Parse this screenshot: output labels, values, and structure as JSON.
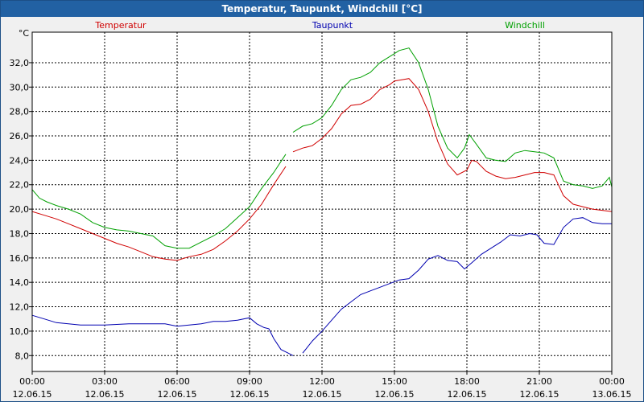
{
  "window": {
    "title": "Temperatur, Taupunkt, Windchill [°C]"
  },
  "chart_data": {
    "type": "line",
    "title": "Temperatur, Taupunkt, Windchill [°C]",
    "ylabel": "°C",
    "xlabel": "",
    "ylim": [
      6.7,
      34.5
    ],
    "xlim": [
      0,
      24
    ],
    "grid": true,
    "legend_position": "top",
    "y_ticks": [
      8,
      10,
      12,
      14,
      16,
      18,
      20,
      22,
      24,
      26,
      28,
      30,
      32
    ],
    "y_tick_labels": [
      "8,0",
      "10,0",
      "12,0",
      "14,0",
      "16,0",
      "18,0",
      "20,0",
      "22,0",
      "24,0",
      "26,0",
      "28,0",
      "30,0",
      "32,0"
    ],
    "x_ticks": [
      0,
      3,
      6,
      9,
      12,
      15,
      18,
      21,
      24
    ],
    "x_tick_labels": [
      {
        "time": "00:00",
        "date": "12.06.15"
      },
      {
        "time": "03:00",
        "date": "12.06.15"
      },
      {
        "time": "06:00",
        "date": "12.06.15"
      },
      {
        "time": "09:00",
        "date": "12.06.15"
      },
      {
        "time": "12:00",
        "date": "12.06.15"
      },
      {
        "time": "15:00",
        "date": "12.06.15"
      },
      {
        "time": "18:00",
        "date": "12.06.15"
      },
      {
        "time": "21:00",
        "date": "12.06.15"
      },
      {
        "time": "00:00",
        "date": "13.06.15"
      }
    ],
    "series": [
      {
        "name": "Temperatur",
        "color": "#d00000",
        "segments": [
          [
            [
              0,
              19.8
            ],
            [
              0.5,
              19.5
            ],
            [
              1,
              19.2
            ],
            [
              1.5,
              18.8
            ],
            [
              2,
              18.4
            ],
            [
              2.5,
              18.0
            ],
            [
              3,
              17.6
            ],
            [
              3.5,
              17.2
            ],
            [
              4,
              16.9
            ],
            [
              4.5,
              16.5
            ],
            [
              5,
              16.1
            ],
            [
              5.5,
              15.9
            ],
            [
              6,
              15.8
            ],
            [
              6.5,
              16.1
            ],
            [
              7,
              16.3
            ],
            [
              7.5,
              16.7
            ],
            [
              8,
              17.4
            ],
            [
              8.5,
              18.2
            ],
            [
              9,
              19.2
            ],
            [
              9.5,
              20.4
            ],
            [
              10,
              22.0
            ],
            [
              10.5,
              23.5
            ]
          ],
          [
            [
              10.8,
              24.7
            ],
            [
              11.2,
              25.0
            ],
            [
              11.6,
              25.2
            ],
            [
              12,
              25.8
            ],
            [
              12.4,
              26.6
            ],
            [
              12.8,
              27.8
            ],
            [
              13.2,
              28.5
            ],
            [
              13.6,
              28.6
            ],
            [
              14,
              29.0
            ],
            [
              14.4,
              29.8
            ],
            [
              14.8,
              30.2
            ],
            [
              15,
              30.5
            ],
            [
              15.3,
              30.6
            ],
            [
              15.6,
              30.7
            ],
            [
              16,
              29.8
            ],
            [
              16.4,
              28.0
            ],
            [
              16.8,
              25.5
            ],
            [
              17.2,
              23.7
            ],
            [
              17.6,
              22.8
            ],
            [
              18,
              23.2
            ],
            [
              18.2,
              24.0
            ],
            [
              18.4,
              23.9
            ],
            [
              18.8,
              23.1
            ],
            [
              19.2,
              22.7
            ],
            [
              19.6,
              22.5
            ],
            [
              20,
              22.6
            ],
            [
              20.4,
              22.8
            ],
            [
              20.8,
              23.0
            ],
            [
              21.2,
              23.0
            ],
            [
              21.6,
              22.8
            ],
            [
              22,
              21.1
            ],
            [
              22.4,
              20.4
            ],
            [
              22.8,
              20.2
            ],
            [
              23.2,
              20.0
            ],
            [
              23.6,
              19.9
            ],
            [
              24,
              19.8
            ]
          ]
        ]
      },
      {
        "name": "Taupunkt",
        "color": "#0000b0",
        "segments": [
          [
            [
              0,
              11.3
            ],
            [
              0.5,
              11.0
            ],
            [
              1,
              10.7
            ],
            [
              2,
              10.5
            ],
            [
              3,
              10.5
            ],
            [
              4,
              10.6
            ],
            [
              5,
              10.6
            ],
            [
              5.5,
              10.6
            ],
            [
              6,
              10.4
            ],
            [
              6.5,
              10.5
            ],
            [
              7,
              10.6
            ],
            [
              7.5,
              10.8
            ],
            [
              8,
              10.8
            ],
            [
              8.5,
              10.9
            ],
            [
              9,
              11.1
            ],
            [
              9.3,
              10.6
            ],
            [
              9.6,
              10.3
            ],
            [
              9.8,
              10.2
            ],
            [
              10,
              9.4
            ],
            [
              10.3,
              8.5
            ],
            [
              10.6,
              8.2
            ],
            [
              10.8,
              8.0
            ]
          ],
          [
            [
              11.2,
              8.2
            ],
            [
              11.6,
              9.2
            ],
            [
              12,
              10.0
            ],
            [
              12.4,
              10.9
            ],
            [
              12.8,
              11.8
            ],
            [
              13.2,
              12.4
            ],
            [
              13.6,
              13.0
            ],
            [
              14,
              13.3
            ],
            [
              14.4,
              13.6
            ],
            [
              14.8,
              13.9
            ],
            [
              15.2,
              14.2
            ],
            [
              15.6,
              14.3
            ],
            [
              16,
              15.0
            ],
            [
              16.4,
              15.9
            ],
            [
              16.8,
              16.2
            ],
            [
              17.2,
              15.8
            ],
            [
              17.6,
              15.7
            ],
            [
              17.9,
              15.1
            ],
            [
              18.2,
              15.6
            ],
            [
              18.6,
              16.3
            ],
            [
              19,
              16.8
            ],
            [
              19.4,
              17.3
            ],
            [
              19.8,
              17.9
            ],
            [
              20.2,
              17.8
            ],
            [
              20.6,
              18.0
            ],
            [
              20.9,
              17.9
            ],
            [
              21.2,
              17.2
            ],
            [
              21.6,
              17.1
            ],
            [
              22,
              18.5
            ],
            [
              22.4,
              19.2
            ],
            [
              22.8,
              19.3
            ],
            [
              23.2,
              18.9
            ],
            [
              23.6,
              18.8
            ],
            [
              24,
              18.8
            ]
          ]
        ]
      },
      {
        "name": "Windchill",
        "color": "#00a000",
        "segments": [
          [
            [
              0,
              21.6
            ],
            [
              0.3,
              20.9
            ],
            [
              0.6,
              20.6
            ],
            [
              1,
              20.3
            ],
            [
              1.5,
              20.0
            ],
            [
              2,
              19.6
            ],
            [
              2.5,
              18.9
            ],
            [
              3,
              18.5
            ],
            [
              3.5,
              18.3
            ],
            [
              4,
              18.2
            ],
            [
              4.5,
              18.0
            ],
            [
              5,
              17.8
            ],
            [
              5.5,
              17.0
            ],
            [
              6,
              16.8
            ],
            [
              6.5,
              16.8
            ],
            [
              7,
              17.3
            ],
            [
              7.5,
              17.8
            ],
            [
              8,
              18.4
            ],
            [
              8.5,
              19.3
            ],
            [
              9,
              20.2
            ],
            [
              9.5,
              21.7
            ],
            [
              10,
              23.0
            ],
            [
              10.5,
              24.5
            ]
          ],
          [
            [
              10.8,
              26.3
            ],
            [
              11.2,
              26.8
            ],
            [
              11.6,
              27.0
            ],
            [
              12,
              27.5
            ],
            [
              12.4,
              28.5
            ],
            [
              12.8,
              29.8
            ],
            [
              13.2,
              30.6
            ],
            [
              13.6,
              30.8
            ],
            [
              14,
              31.2
            ],
            [
              14.4,
              32.0
            ],
            [
              14.8,
              32.5
            ],
            [
              15.2,
              33.0
            ],
            [
              15.6,
              33.2
            ],
            [
              16,
              32.0
            ],
            [
              16.4,
              29.8
            ],
            [
              16.8,
              26.8
            ],
            [
              17.2,
              25.0
            ],
            [
              17.6,
              24.2
            ],
            [
              17.9,
              25.0
            ],
            [
              18.1,
              26.1
            ],
            [
              18.4,
              25.3
            ],
            [
              18.8,
              24.2
            ],
            [
              19.2,
              24.0
            ],
            [
              19.6,
              23.9
            ],
            [
              20,
              24.6
            ],
            [
              20.4,
              24.8
            ],
            [
              20.8,
              24.7
            ],
            [
              21.2,
              24.6
            ],
            [
              21.6,
              24.2
            ],
            [
              22,
              22.3
            ],
            [
              22.4,
              22.0
            ],
            [
              22.8,
              21.9
            ],
            [
              23.2,
              21.7
            ],
            [
              23.6,
              21.9
            ],
            [
              23.9,
              22.6
            ],
            [
              24,
              21.8
            ]
          ]
        ]
      }
    ]
  }
}
